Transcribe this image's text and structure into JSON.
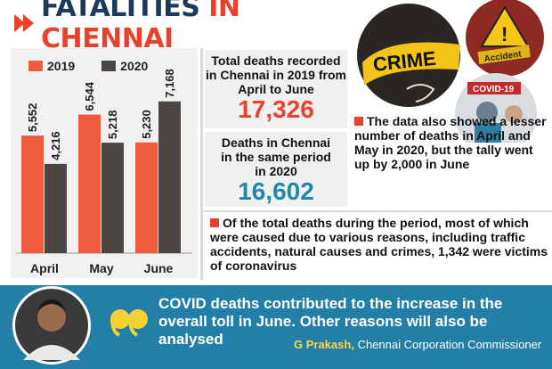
{
  "header": {
    "title_part1": "FATALITIES",
    "title_part2": "IN CHENNAI"
  },
  "colors": {
    "accent_red": "#e8412c",
    "navy": "#1c3a5e",
    "teal": "#1f8aa8",
    "series_2019": "#ef5b3f",
    "series_2020": "#4a4642",
    "footer_bg": "#237fa6"
  },
  "chart_data": {
    "type": "bar",
    "categories": [
      "April",
      "May",
      "June"
    ],
    "series": [
      {
        "name": "2019",
        "values": [
          5552,
          6544,
          5230
        ],
        "labels": [
          "5,552",
          "6,544",
          "5,230"
        ]
      },
      {
        "name": "2020",
        "values": [
          4216,
          5218,
          7168
        ],
        "labels": [
          "4,216",
          "5,218",
          "7,168"
        ]
      }
    ],
    "ylim": [
      0,
      8000
    ],
    "legend": "top"
  },
  "stats": {
    "total_2019_label": "Total deaths recorded in Chennai in 2019 from April to June",
    "total_2019_value": "17,326",
    "total_2020_label": "Deaths in Chennai in the same period in 2020",
    "total_2020_value": "16,602"
  },
  "notes": {
    "note1": "The data also showed a lesser number of deaths in April and May in 2020, but the tally went up by 2,000 in June",
    "note2": "Of the total deaths during the period, most of which were caused due to various reasons, including traffic accidents, natural causes and crimes, 1,342 were victims of coronavirus"
  },
  "photos": {
    "crime_text": "CRIME",
    "accident_text": "Accident",
    "covid_text": "COVID-19"
  },
  "quote": {
    "text": "COVID deaths contributed to the increase in the overall toll in June. Other reasons will also be analysed",
    "speaker": "G Prakash,",
    "role": "Chennai Corporation Commissioner"
  }
}
